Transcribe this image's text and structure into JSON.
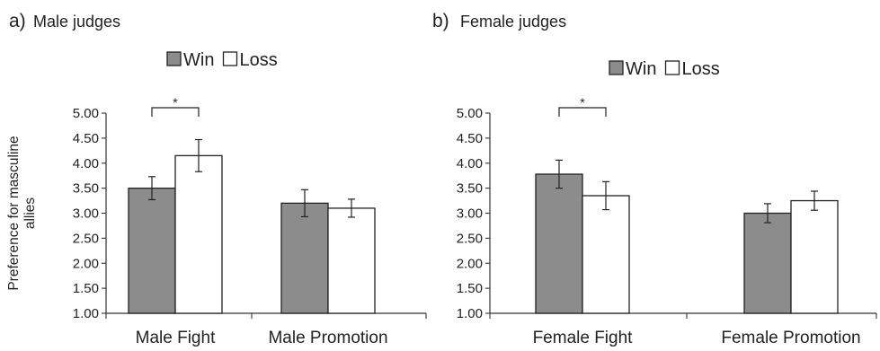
{
  "chart_data": [
    {
      "type": "bar",
      "panel_label": "a)",
      "title": "Male judges",
      "ylabel": "Preference for masculine allies",
      "ylim": [
        1.0,
        5.0
      ],
      "yticks": [
        "1.00",
        "1.50",
        "2.00",
        "2.50",
        "3.00",
        "3.50",
        "4.00",
        "4.50",
        "5.00"
      ],
      "categories": [
        "Male Fight",
        "Male Promotion"
      ],
      "series": [
        {
          "name": "Win",
          "color": "#8c8c8c",
          "values": [
            3.5,
            3.2
          ],
          "errors": [
            0.23,
            0.27
          ]
        },
        {
          "name": "Loss",
          "color": "#ffffff",
          "values": [
            4.15,
            3.1
          ],
          "errors": [
            0.32,
            0.18
          ]
        }
      ],
      "significance": [
        {
          "category": "Male Fight",
          "label": "*"
        }
      ],
      "legend_position": "top"
    },
    {
      "type": "bar",
      "panel_label": "b)",
      "title": "Female judges",
      "ylabel": "",
      "ylim": [
        1.0,
        5.0
      ],
      "yticks": [
        "1.00",
        "1.50",
        "2.00",
        "2.50",
        "3.00",
        "3.50",
        "4.00",
        "4.50",
        "5.00"
      ],
      "categories": [
        "Female Fight",
        "Female Promotion"
      ],
      "series": [
        {
          "name": "Win",
          "color": "#8c8c8c",
          "values": [
            3.78,
            3.0
          ],
          "errors": [
            0.28,
            0.19
          ]
        },
        {
          "name": "Loss",
          "color": "#ffffff",
          "values": [
            3.35,
            3.25
          ],
          "errors": [
            0.28,
            0.19
          ]
        }
      ],
      "significance": [
        {
          "category": "Female Fight",
          "label": "*"
        }
      ],
      "legend_position": "top"
    }
  ]
}
